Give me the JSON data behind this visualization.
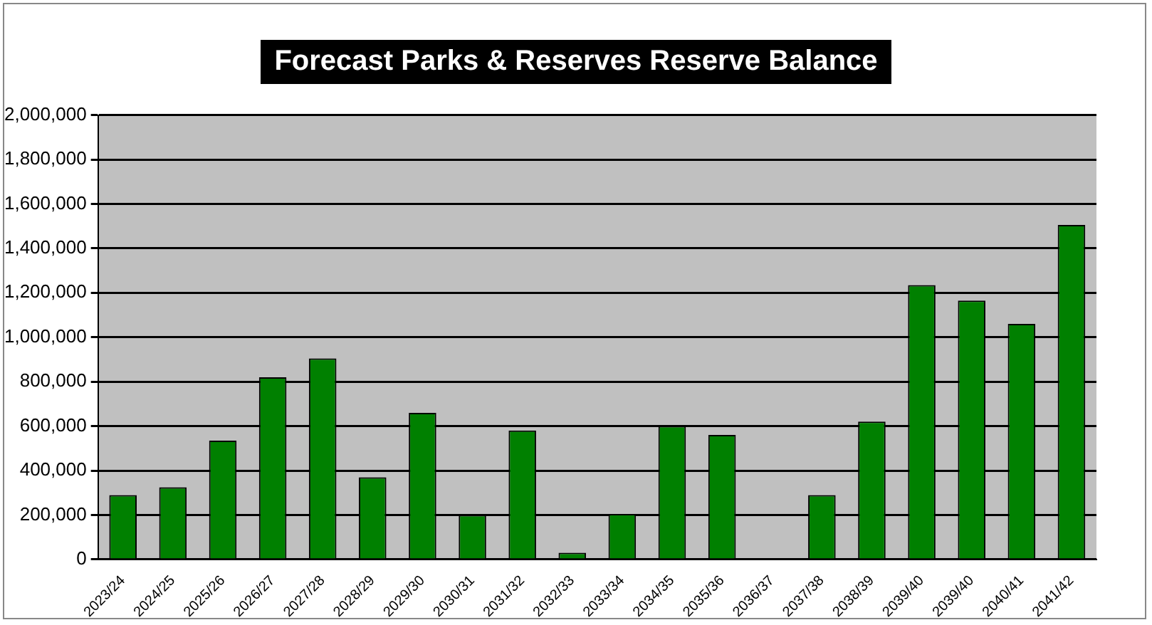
{
  "chart_data": {
    "type": "bar",
    "title": "Forecast Parks & Reserves Reserve Balance",
    "categories": [
      "2023/24",
      "2024/25",
      "2025/26",
      "2026/27",
      "2027/28",
      "2028/29",
      "2029/30",
      "2030/31",
      "2031/32",
      "2032/33",
      "2033/34",
      "2034/35",
      "2035/36",
      "2036/37",
      "2037/38",
      "2038/39",
      "2039/40",
      "2039/40",
      "2040/41",
      "2041/42"
    ],
    "values": [
      290000,
      325000,
      535000,
      820000,
      905000,
      370000,
      660000,
      200000,
      580000,
      30000,
      205000,
      600000,
      560000,
      5000,
      290000,
      620000,
      1235000,
      1165000,
      1060000,
      1505000
    ],
    "color": "#008000",
    "ylim": [
      0,
      2000000
    ],
    "yticks": [
      {
        "value": 0,
        "label": "0"
      },
      {
        "value": 200000,
        "label": "200,000"
      },
      {
        "value": 400000,
        "label": "400,000"
      },
      {
        "value": 600000,
        "label": "600,000"
      },
      {
        "value": 800000,
        "label": "800,000"
      },
      {
        "value": 1000000,
        "label": "1,000,000"
      },
      {
        "value": 1200000,
        "label": "1,200,000"
      },
      {
        "value": 1400000,
        "label": "1,400,000"
      },
      {
        "value": 1600000,
        "label": "1,600,000"
      },
      {
        "value": 1800000,
        "label": "1,800,000"
      },
      {
        "value": 2000000,
        "label": "2,000,000"
      }
    ],
    "grid": "y",
    "legend": false
  }
}
